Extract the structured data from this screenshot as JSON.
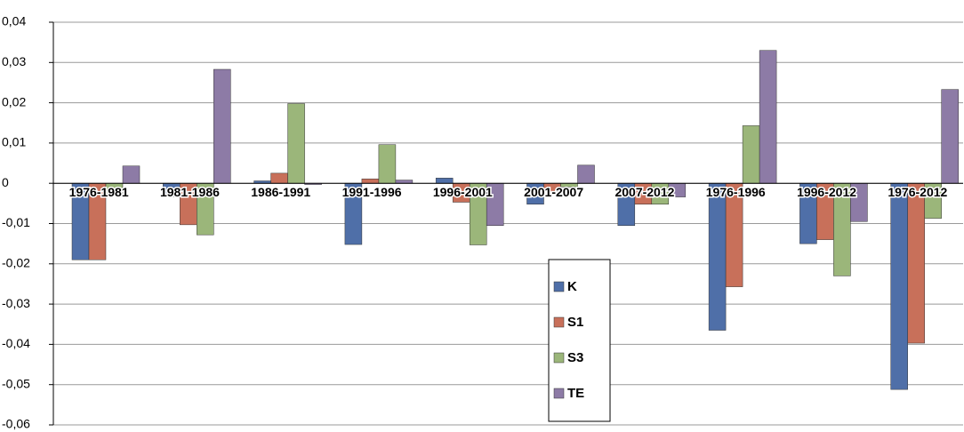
{
  "chart_data": {
    "type": "bar",
    "categories": [
      "1976-1981",
      "1981-1986",
      "1986-1991",
      "1991-1996",
      "1996-2001",
      "2001-2007",
      "2007-2012",
      "1976-1996",
      "1996-2012",
      "1976-2012"
    ],
    "series": [
      {
        "name": "K",
        "color": "#4f6fa8",
        "values": [
          -0.019,
          -0.0033,
          0.0006,
          -0.0152,
          0.0013,
          -0.0052,
          -0.0105,
          -0.0365,
          -0.015,
          -0.0512
        ]
      },
      {
        "name": "S1",
        "color": "#c8705a",
        "values": [
          -0.019,
          -0.0103,
          0.0025,
          0.0011,
          -0.0047,
          -0.0021,
          -0.0052,
          -0.0257,
          -0.014,
          -0.0397
        ]
      },
      {
        "name": "S3",
        "color": "#9bb67a",
        "values": [
          -0.0025,
          -0.0128,
          0.0198,
          0.0096,
          -0.0153,
          -0.0009,
          -0.0052,
          0.0143,
          -0.023,
          -0.0087
        ]
      },
      {
        "name": "TE",
        "color": "#8d7ba6",
        "values": [
          0.0043,
          0.0283,
          -0.0003,
          0.0008,
          -0.0105,
          0.0045,
          -0.0034,
          0.033,
          -0.0095,
          0.0233
        ]
      }
    ],
    "ylim": [
      -0.06,
      0.04
    ],
    "yticks": [
      {
        "value": -0.06,
        "label": "-0,06"
      },
      {
        "value": -0.05,
        "label": "-0,05"
      },
      {
        "value": -0.04,
        "label": "-0,04"
      },
      {
        "value": -0.03,
        "label": "-0,03"
      },
      {
        "value": -0.02,
        "label": "-0,02"
      },
      {
        "value": -0.01,
        "label": "-0,01"
      },
      0,
      {
        "value": 0.01,
        "label": "0,01"
      },
      {
        "value": 0.02,
        "label": "0,02"
      },
      {
        "value": 0.03,
        "label": "0,03"
      },
      {
        "value": 0.04,
        "label": "0,04"
      }
    ],
    "grid": true
  }
}
